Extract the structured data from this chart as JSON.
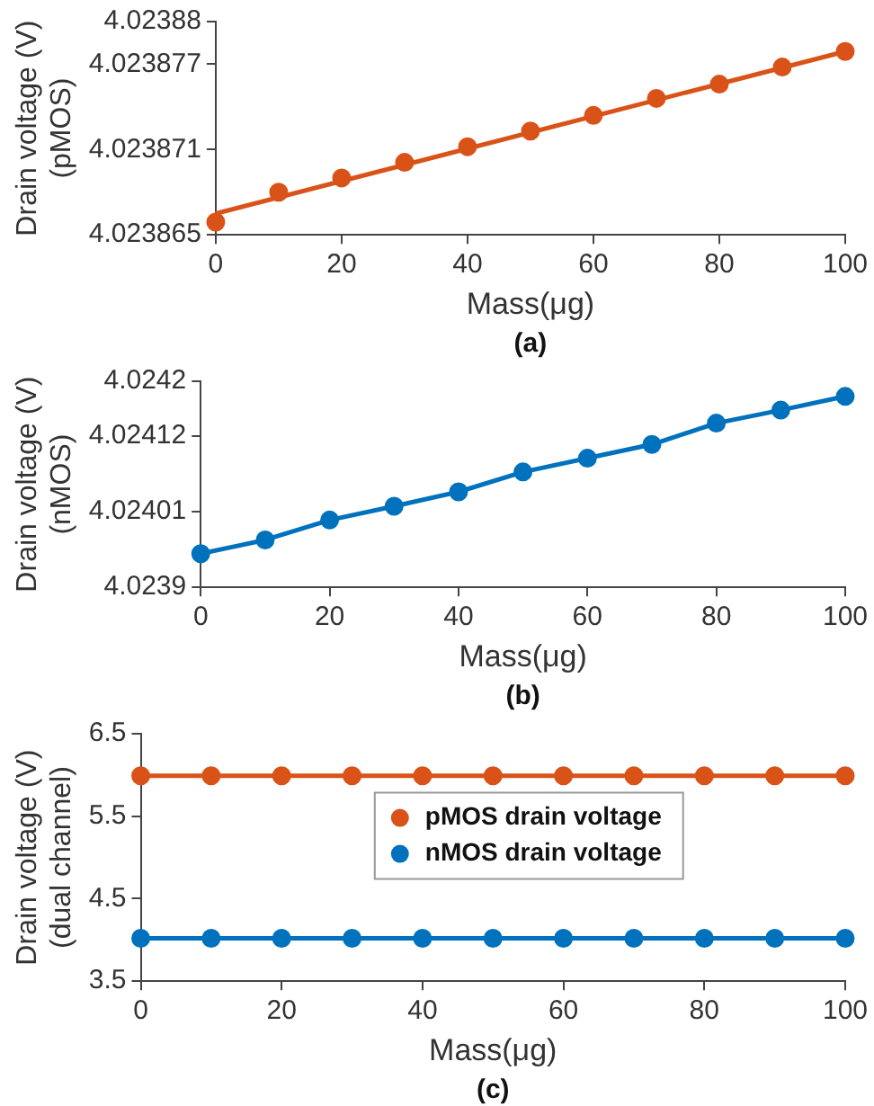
{
  "chart_data": [
    {
      "type": "line",
      "xlabel": "Mass(μg)",
      "ylabel": "Drain voltage (V)\n(pMOS)",
      "annotations": [
        "(a)"
      ],
      "x": [
        0,
        10,
        20,
        30,
        40,
        50,
        60,
        70,
        80,
        90,
        100
      ],
      "xlim": [
        0,
        100
      ],
      "xticks": [
        0,
        20,
        40,
        60,
        80,
        100
      ],
      "ylim": [
        4.023865,
        4.02388
      ],
      "yticks": [
        4.023865,
        4.023871,
        4.023877,
        4.02388
      ],
      "grid": false,
      "legend": false,
      "series": [
        {
          "type": "scatter",
          "color": "#d95319",
          "marker": "circle",
          "values": [
            4.0238659,
            4.023868,
            4.023869,
            4.0238701,
            4.0238712,
            4.0238723,
            4.0238734,
            4.0238746,
            4.0238756,
            4.0238768,
            4.0238779
          ]
        },
        {
          "type": "line",
          "color": "#d95319",
          "marker": "none",
          "line_style": "solid",
          "x": [
            0,
            100
          ],
          "values": [
            4.0238665,
            4.0238779
          ]
        }
      ]
    },
    {
      "type": "line",
      "xlabel": "Mass(μg)",
      "ylabel": "Drain voltage (V)\n(nMOS)",
      "annotations": [
        "(b)"
      ],
      "x": [
        0,
        10,
        20,
        30,
        40,
        50,
        60,
        70,
        80,
        90,
        100
      ],
      "xlim": [
        0,
        100
      ],
      "xticks": [
        0,
        20,
        40,
        60,
        80,
        100
      ],
      "ylim": [
        4.0239,
        4.0242
      ],
      "yticks": [
        4.0239,
        4.02401,
        4.02412,
        4.0242
      ],
      "grid": false,
      "legend": false,
      "marker": "circle",
      "line_style": "solid",
      "series": [
        {
          "color": "#0072bd",
          "values": [
            4.023949,
            4.023969,
            4.023998,
            4.024018,
            4.024039,
            4.024068,
            4.024088,
            4.024108,
            4.024139,
            4.024158,
            4.024178
          ]
        }
      ]
    },
    {
      "type": "line",
      "xlabel": "Mass(μg)",
      "ylabel": "Drain voltage (V)\n(dual channel)",
      "annotations": [
        "(c)"
      ],
      "x": [
        0,
        10,
        20,
        30,
        40,
        50,
        60,
        70,
        80,
        90,
        100
      ],
      "xlim": [
        0,
        100
      ],
      "xticks": [
        0,
        20,
        40,
        60,
        80,
        100
      ],
      "ylim": [
        3.5,
        6.5
      ],
      "yticks": [
        3.5,
        4.5,
        5.5,
        6.5
      ],
      "grid": false,
      "legend": "center",
      "marker": "circle",
      "line_style": "solid",
      "series": [
        {
          "name": "pMOS drain voltage",
          "color": "#d95319",
          "values": [
            5.99,
            5.99,
            5.99,
            5.99,
            5.99,
            5.99,
            5.99,
            5.99,
            5.99,
            5.99,
            5.99
          ]
        },
        {
          "name": "nMOS drain voltage",
          "color": "#0072bd",
          "values": [
            4.02,
            4.02,
            4.02,
            4.02,
            4.02,
            4.02,
            4.02,
            4.02,
            4.02,
            4.02,
            4.02
          ]
        }
      ]
    }
  ]
}
